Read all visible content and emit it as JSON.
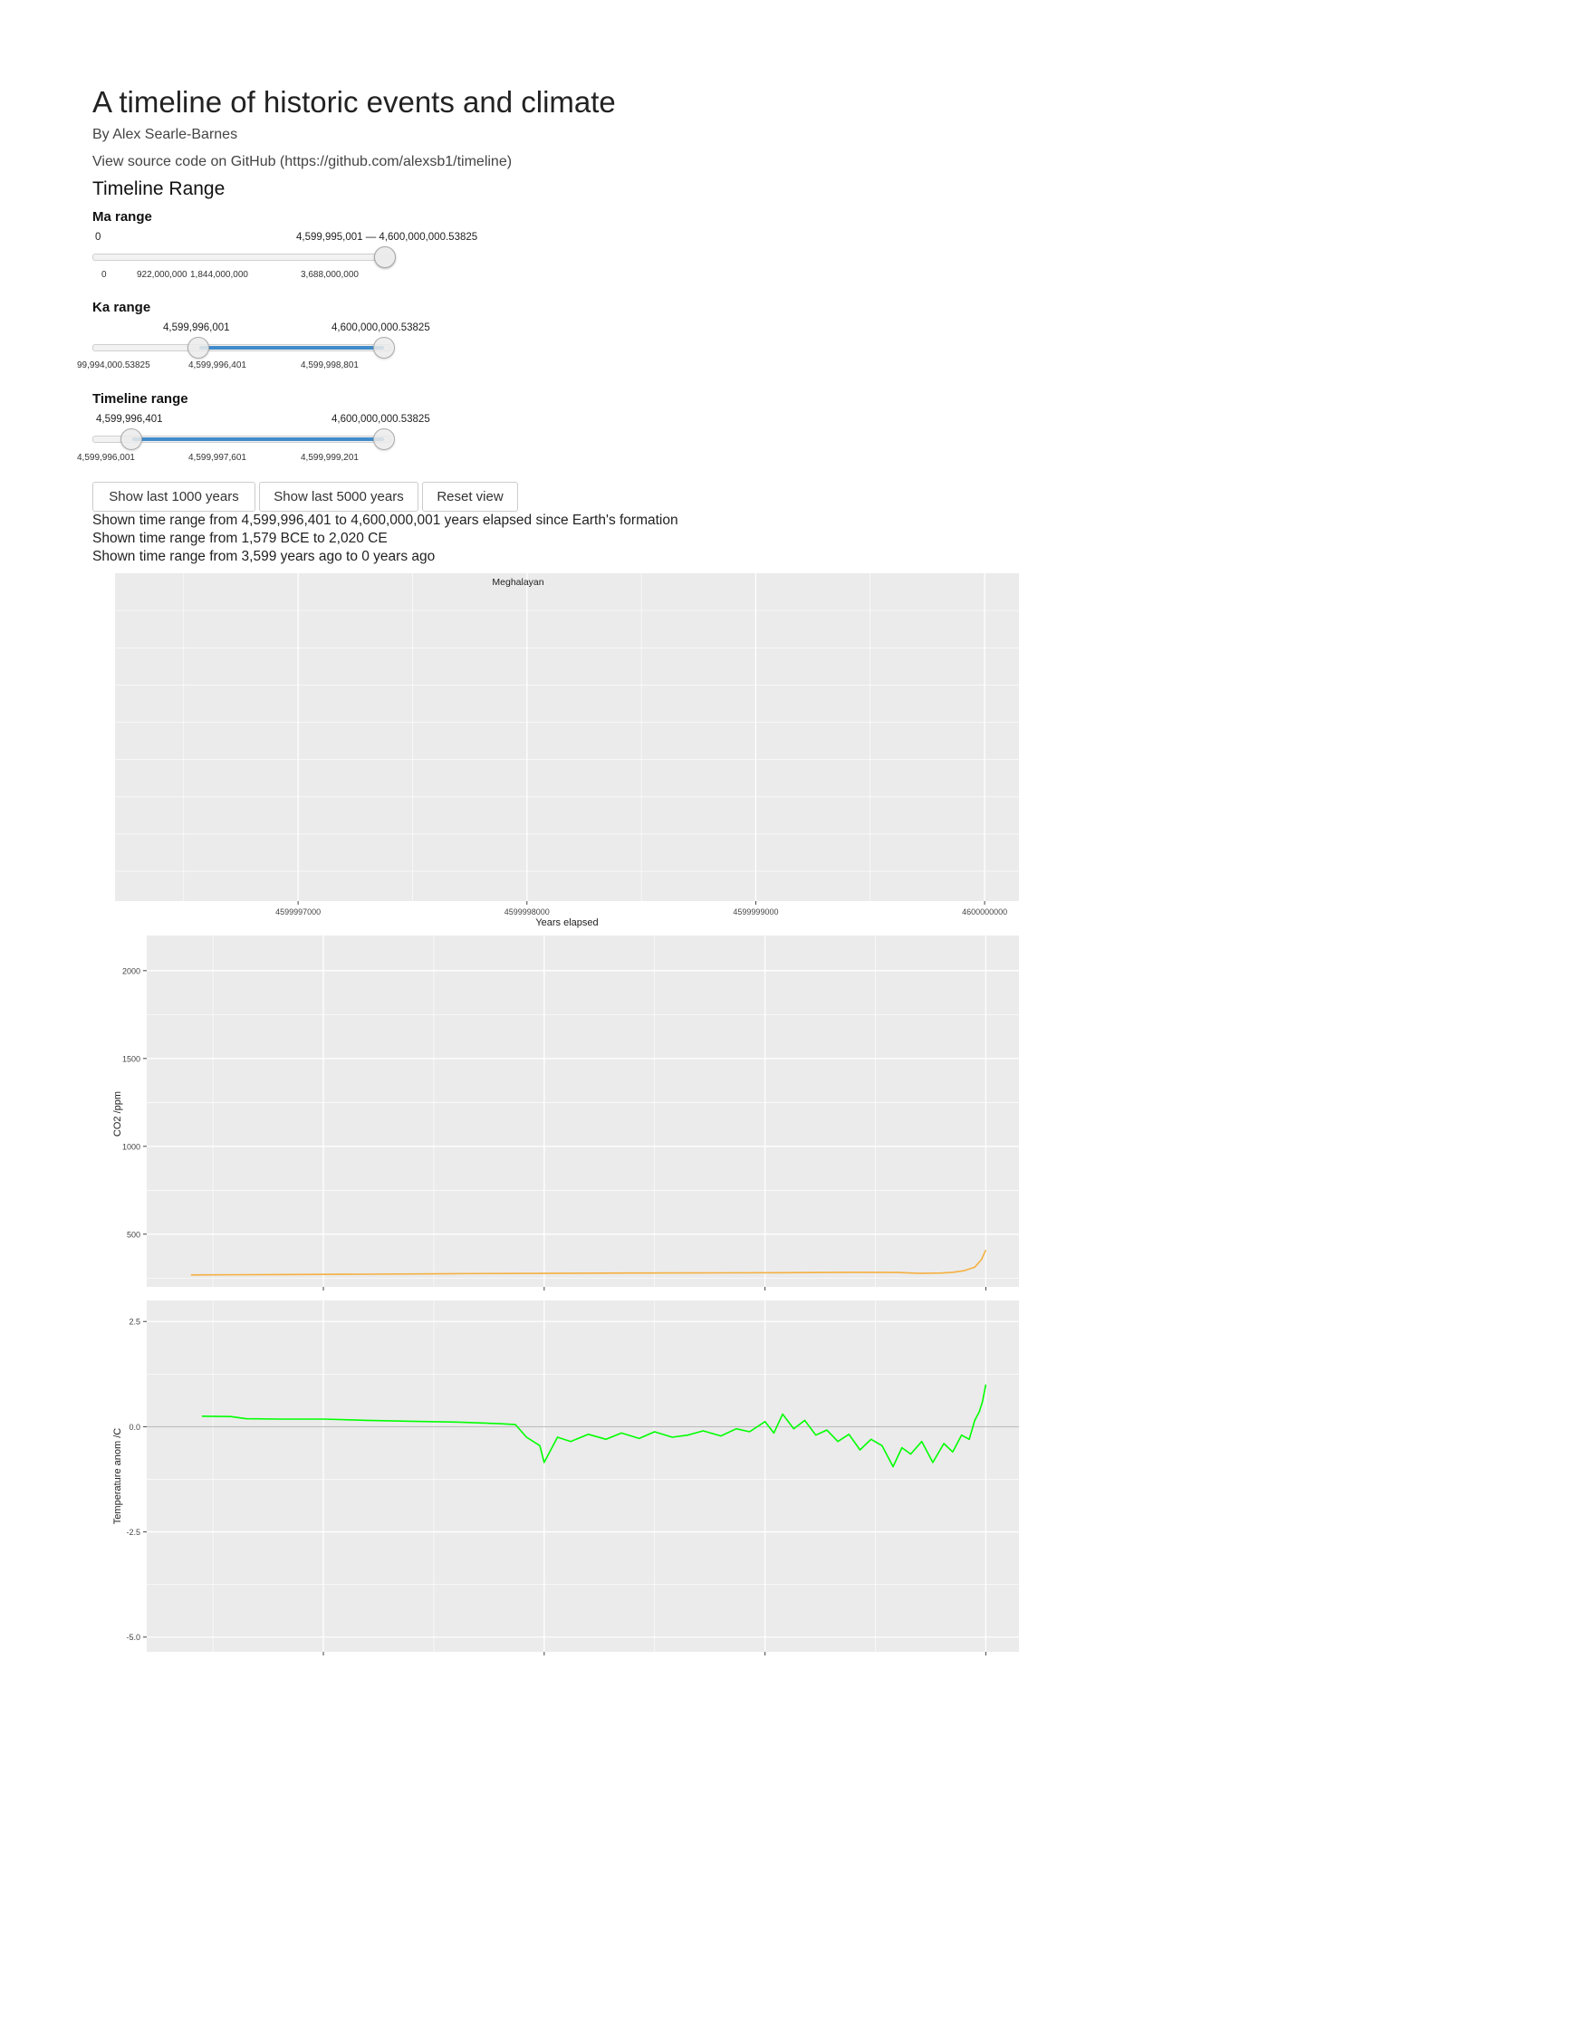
{
  "page": {
    "title": "A timeline of historic events and climate",
    "author": "By Alex Searle-Barnes",
    "source_link": "View source code on GitHub (https://github.com/alexsb1/timeline)",
    "range_heading": "Timeline Range"
  },
  "sliders": {
    "ma": {
      "label": "Ma range",
      "min_label": "0",
      "value_label": "4,599,995,001 — 4,600,000,000.53825",
      "ticks": [
        "0",
        "922,000,000",
        "1,844,000,000",
        "3,688,000,000"
      ]
    },
    "ka": {
      "label": "Ka range",
      "from_label": "4,599,996,001",
      "to_label": "4,600,000,000.53825",
      "ticks": [
        "99,994,000.53825",
        "4,599,996,401",
        "4,599,998,801"
      ]
    },
    "timeline": {
      "label": "Timeline range",
      "from_label": "4,599,996,401",
      "to_label": "4,600,000,000.53825",
      "ticks": [
        "4,599,996,001",
        "4,599,997,601",
        "4,599,999,201"
      ]
    }
  },
  "buttons": {
    "last_1000": "Show last 1000 years",
    "last_5000": "Show last 5000 years",
    "reset": "Reset view"
  },
  "status": {
    "elapsed": "Shown time range from 4,599,996,401 to 4,600,000,001 years elapsed since Earth's formation",
    "calendar": "Shown time range from 1,579 BCE to 2,020 CE",
    "ago": "Shown time range from 3,599 years ago to 0 years ago"
  },
  "colors": {
    "panel_bg": "#ebebeb",
    "grid": "#ffffff",
    "co2_line": "#f5b041",
    "temp_line": "#00ff00",
    "zero_line": "#b3b3b3"
  },
  "chart_data": [
    {
      "type": "bar",
      "title": "",
      "annotation": "Meghalayan",
      "xlabel": "Years elapsed",
      "x_ticks": [
        "4599997000",
        "4599998000",
        "4599999000",
        "4600000000"
      ],
      "xlim": [
        4599996200,
        4600000150
      ]
    },
    {
      "type": "line",
      "ylabel": "CO2 /ppm",
      "y_ticks": [
        "500",
        "1000",
        "1500",
        "2000"
      ],
      "ylim": [
        200,
        2200
      ],
      "xlim": [
        4599996200,
        4600000150
      ],
      "series": [
        {
          "x": [
            4599996400,
            4599996800,
            4599997200,
            4599997600,
            4599998000,
            4599998400,
            4599998800,
            4599999100,
            4599999400,
            4599999600,
            4599999700,
            4599999800,
            4599999850,
            4599999900,
            4599999950,
            4599999980,
            4600000000
          ],
          "values": [
            268,
            270,
            272,
            275,
            277,
            279,
            280,
            281,
            283,
            282,
            277,
            279,
            283,
            292,
            312,
            355,
            410
          ]
        }
      ]
    },
    {
      "type": "line",
      "ylabel": "Temperature anom /C",
      "y_ticks": [
        "2.5",
        "0.0",
        "-2.5",
        "-5.0"
      ],
      "ylim": [
        -5.35,
        3.0
      ],
      "xlim": [
        4599996200,
        4600000150
      ],
      "series": [
        {
          "x": [
            4599996450,
            4599996580,
            4599996650,
            4599996800,
            4599997000,
            4599997200,
            4599997400,
            4599997600,
            4599997800,
            4599997870,
            4599997920,
            4599997980,
            4599998000,
            4599998060,
            4599998120,
            4599998200,
            4599998280,
            4599998350,
            4599998430,
            4599998500,
            4599998580,
            4599998650,
            4599998720,
            4599998800,
            4599998870,
            4599998930,
            4599999000,
            4599999040,
            4599999080,
            4599999130,
            4599999180,
            4599999230,
            4599999280,
            4599999330,
            4599999380,
            4599999430,
            4599999480,
            4599999530,
            4599999580,
            4599999620,
            4599999660,
            4599999710,
            4599999760,
            4599999810,
            4599999850,
            4599999890,
            4599999925,
            4599999950,
            4599999970,
            4599999985,
            4600000000
          ],
          "values": [
            0.25,
            0.24,
            0.19,
            0.18,
            0.18,
            0.15,
            0.13,
            0.11,
            0.07,
            0.05,
            -0.25,
            -0.45,
            -0.85,
            -0.25,
            -0.35,
            -0.18,
            -0.3,
            -0.15,
            -0.28,
            -0.12,
            -0.25,
            -0.2,
            -0.1,
            -0.22,
            -0.05,
            -0.12,
            0.12,
            -0.15,
            0.3,
            -0.05,
            0.15,
            -0.2,
            -0.08,
            -0.35,
            -0.18,
            -0.55,
            -0.3,
            -0.45,
            -0.95,
            -0.5,
            -0.65,
            -0.35,
            -0.85,
            -0.4,
            -0.6,
            -0.2,
            -0.3,
            0.15,
            0.35,
            0.6,
            1.0
          ]
        }
      ]
    }
  ]
}
